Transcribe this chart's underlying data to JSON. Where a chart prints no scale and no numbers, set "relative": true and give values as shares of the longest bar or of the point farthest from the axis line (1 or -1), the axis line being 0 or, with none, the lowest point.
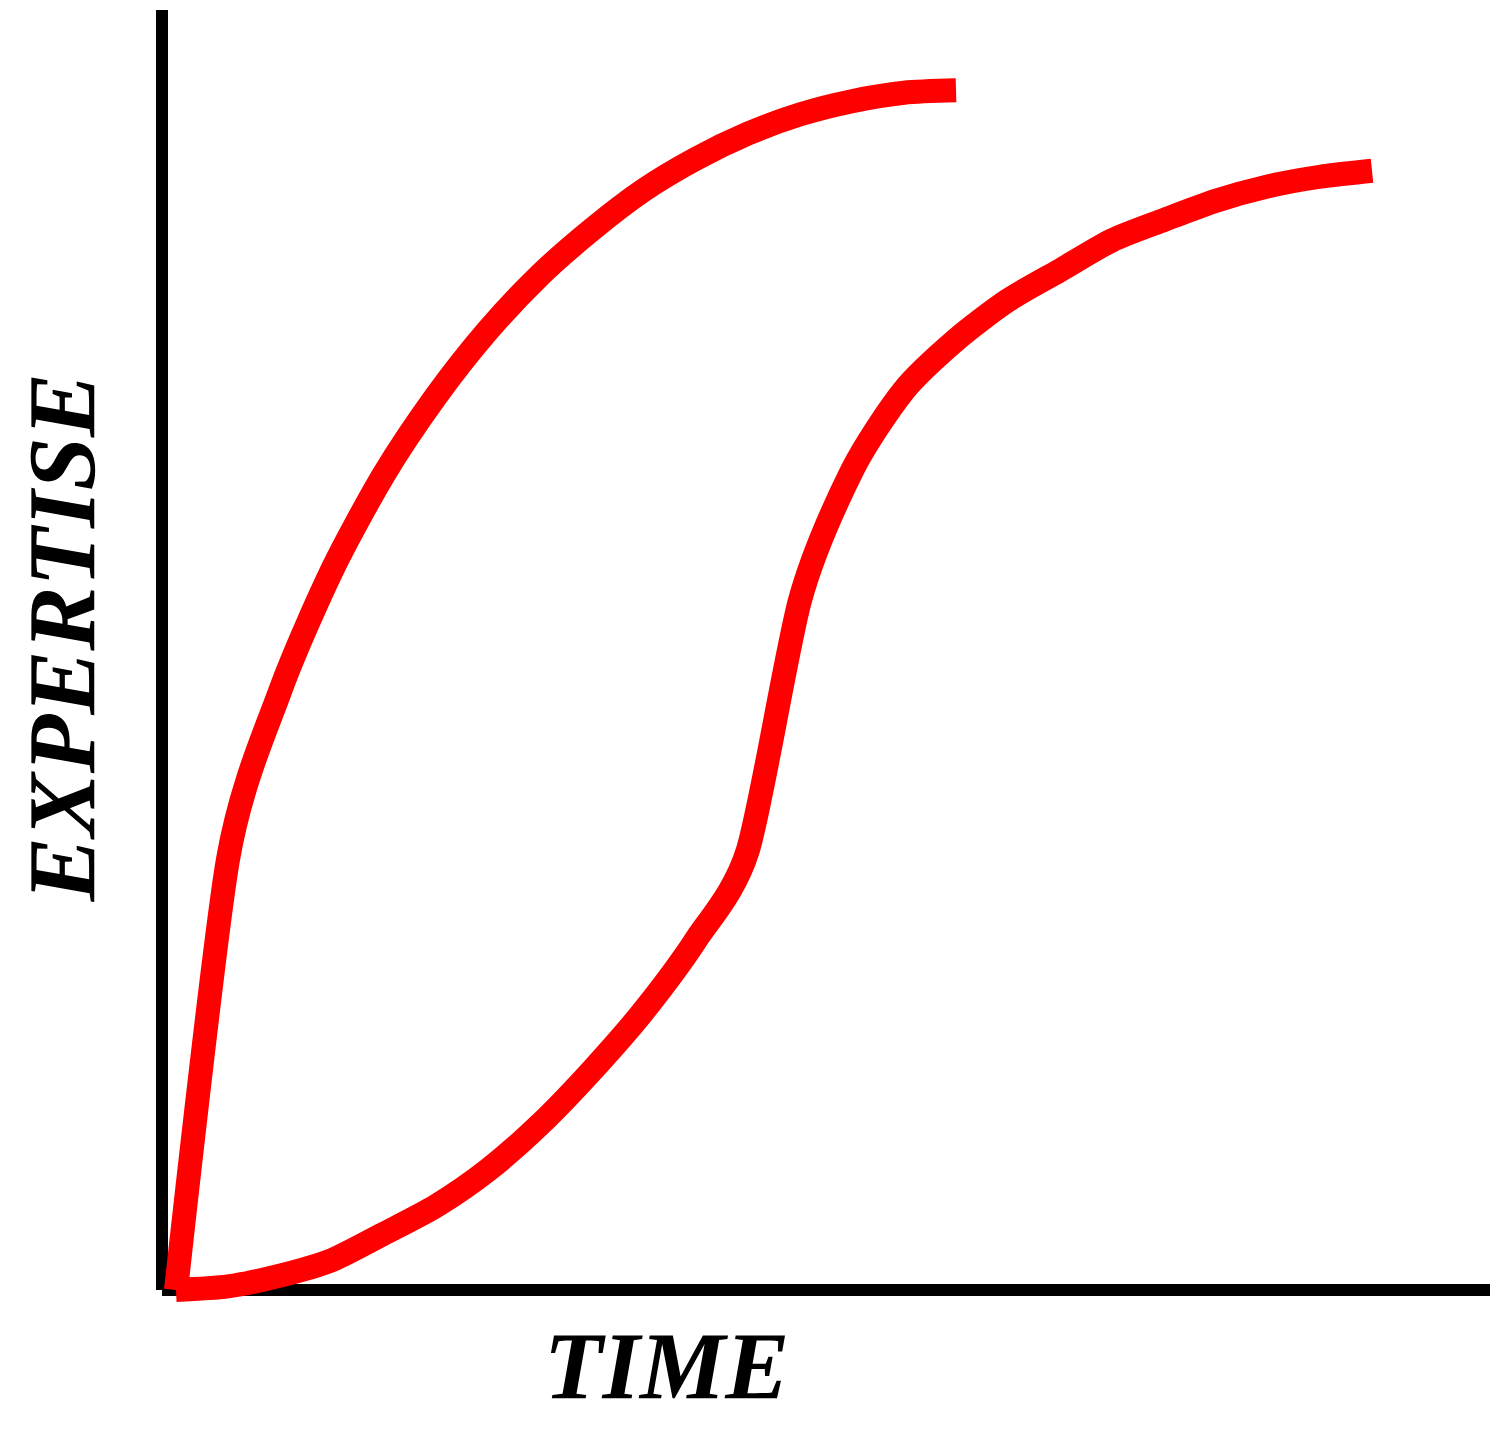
{
  "chart_data": {
    "type": "line",
    "xlabel": "TIME",
    "ylabel": "EXPERTISE",
    "relative": true,
    "line_style": "solid",
    "categories": [
      null,
      null,
      null,
      null,
      null,
      null,
      null,
      null,
      null,
      null,
      null,
      null,
      null,
      null,
      null,
      null,
      null,
      null,
      null,
      null,
      null,
      null,
      null,
      null
    ],
    "series": [
      {
        "color": "#ff0000",
        "values": [
          0,
          0.359,
          0.499,
          0.6,
          0.68,
          0.745,
          0.8,
          0.846,
          0.884,
          0.917,
          0.943,
          0.964,
          0.98,
          0.991,
          0.998,
          1,
          null,
          null,
          null,
          null,
          null,
          null,
          null,
          null
        ]
      },
      {
        "color": "#ff0000",
        "values": [
          0,
          0.003,
          0.012,
          0.025,
          0.047,
          0.07,
          0.1,
          0.138,
          0.183,
          0.233,
          0.292,
          0.367,
          0.575,
          0.683,
          0.75,
          0.792,
          0.825,
          0.85,
          0.875,
          0.892,
          0.908,
          0.92,
          0.928,
          0.933
        ]
      }
    ]
  }
}
